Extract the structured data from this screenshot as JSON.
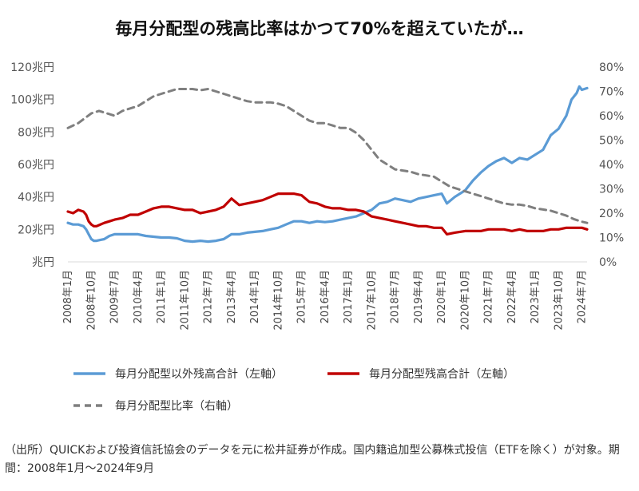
{
  "chart_data": {
    "type": "line",
    "title": "毎月分配型の残高比率はかつて70%を超えていたが…",
    "source": "（出所）QUICKおよび投資信託協会のデータを元に松井証券が作成。国内籍追加型公募株式投信（ETFを除く）が対象。期間：2008年1月～2024年9月",
    "x_tick_labels": [
      "2008年1月",
      "2008年10月",
      "2009年7月",
      "2010年4月",
      "2011年1月",
      "2011年10月",
      "2012年7月",
      "2013年4月",
      "2014年1月",
      "2014年10月",
      "2015年7月",
      "2016年4月",
      "2017年1月",
      "2017年10月",
      "2018年7月",
      "2019年4月",
      "2020年1月",
      "2020年10月",
      "2021年7月",
      "2022年4月",
      "2023年1月",
      "2023年10月",
      "2024年7月"
    ],
    "y_left": {
      "ticks": [
        "兆円",
        "20兆円",
        "40兆円",
        "60兆円",
        "80兆円",
        "100兆円",
        "120兆円"
      ],
      "ylim": [
        0,
        120
      ],
      "unit": "兆円"
    },
    "y_right": {
      "ticks": [
        "0%",
        "10%",
        "20%",
        "30%",
        "40%",
        "50%",
        "60%",
        "70%",
        "80%"
      ],
      "ylim": [
        0,
        80
      ],
      "unit": "%"
    },
    "grid": false,
    "legend_position": "bottom",
    "series": [
      {
        "name": "毎月分配型以外残高合計（左軸）",
        "axis": "left",
        "color": "#5b9bd5",
        "style": "solid",
        "points": [
          [
            "2008-01",
            24
          ],
          [
            "2008-03",
            23
          ],
          [
            "2008-05",
            23
          ],
          [
            "2008-07",
            22
          ],
          [
            "2008-08",
            20
          ],
          [
            "2008-09",
            17
          ],
          [
            "2008-10",
            14
          ],
          [
            "2008-11",
            13
          ],
          [
            "2008-12",
            13
          ],
          [
            "2009-03",
            14
          ],
          [
            "2009-05",
            16
          ],
          [
            "2009-07",
            17
          ],
          [
            "2009-10",
            17
          ],
          [
            "2010-01",
            17
          ],
          [
            "2010-04",
            17
          ],
          [
            "2010-07",
            16
          ],
          [
            "2010-10",
            15.5
          ],
          [
            "2011-01",
            15
          ],
          [
            "2011-04",
            15
          ],
          [
            "2011-07",
            14.5
          ],
          [
            "2011-10",
            13
          ],
          [
            "2012-01",
            12.5
          ],
          [
            "2012-04",
            13
          ],
          [
            "2012-07",
            12.5
          ],
          [
            "2012-10",
            13
          ],
          [
            "2013-01",
            14
          ],
          [
            "2013-04",
            17
          ],
          [
            "2013-07",
            17
          ],
          [
            "2013-10",
            18
          ],
          [
            "2014-01",
            18.5
          ],
          [
            "2014-04",
            19
          ],
          [
            "2014-07",
            20
          ],
          [
            "2014-10",
            21
          ],
          [
            "2015-01",
            23
          ],
          [
            "2015-04",
            25
          ],
          [
            "2015-07",
            25
          ],
          [
            "2015-10",
            24
          ],
          [
            "2016-01",
            25
          ],
          [
            "2016-04",
            24.5
          ],
          [
            "2016-07",
            25
          ],
          [
            "2016-10",
            26
          ],
          [
            "2017-01",
            27
          ],
          [
            "2017-04",
            28
          ],
          [
            "2017-07",
            30
          ],
          [
            "2017-10",
            32
          ],
          [
            "2018-01",
            36
          ],
          [
            "2018-04",
            37
          ],
          [
            "2018-07",
            39
          ],
          [
            "2018-10",
            38
          ],
          [
            "2019-01",
            37
          ],
          [
            "2019-04",
            39
          ],
          [
            "2019-07",
            40
          ],
          [
            "2019-10",
            41
          ],
          [
            "2020-01",
            42
          ],
          [
            "2020-03",
            36
          ],
          [
            "2020-06",
            40
          ],
          [
            "2020-10",
            44
          ],
          [
            "2021-01",
            50
          ],
          [
            "2021-04",
            55
          ],
          [
            "2021-07",
            59
          ],
          [
            "2021-10",
            62
          ],
          [
            "2022-01",
            64
          ],
          [
            "2022-04",
            61
          ],
          [
            "2022-07",
            64
          ],
          [
            "2022-10",
            63
          ],
          [
            "2023-01",
            66
          ],
          [
            "2023-04",
            69
          ],
          [
            "2023-07",
            78
          ],
          [
            "2023-10",
            82
          ],
          [
            "2024-01",
            90
          ],
          [
            "2024-03",
            100
          ],
          [
            "2024-05",
            104
          ],
          [
            "2024-06",
            108
          ],
          [
            "2024-07",
            106
          ],
          [
            "2024-09",
            107
          ]
        ]
      },
      {
        "name": "毎月分配型残高合計（左軸）",
        "axis": "left",
        "color": "#c00000",
        "style": "solid",
        "points": [
          [
            "2008-01",
            31
          ],
          [
            "2008-03",
            30
          ],
          [
            "2008-05",
            32
          ],
          [
            "2008-07",
            31
          ],
          [
            "2008-08",
            29
          ],
          [
            "2008-09",
            25
          ],
          [
            "2008-10",
            23
          ],
          [
            "2008-11",
            22
          ],
          [
            "2008-12",
            22
          ],
          [
            "2009-03",
            24
          ],
          [
            "2009-05",
            25
          ],
          [
            "2009-07",
            26
          ],
          [
            "2009-10",
            27
          ],
          [
            "2010-01",
            29
          ],
          [
            "2010-04",
            29
          ],
          [
            "2010-07",
            31
          ],
          [
            "2010-10",
            33
          ],
          [
            "2011-01",
            34
          ],
          [
            "2011-04",
            34
          ],
          [
            "2011-07",
            33
          ],
          [
            "2011-10",
            32
          ],
          [
            "2012-01",
            32
          ],
          [
            "2012-04",
            30
          ],
          [
            "2012-07",
            31
          ],
          [
            "2012-10",
            32
          ],
          [
            "2013-01",
            34
          ],
          [
            "2013-04",
            39
          ],
          [
            "2013-07",
            35
          ],
          [
            "2013-10",
            36
          ],
          [
            "2014-01",
            37
          ],
          [
            "2014-04",
            38
          ],
          [
            "2014-07",
            40
          ],
          [
            "2014-10",
            42
          ],
          [
            "2015-01",
            42
          ],
          [
            "2015-04",
            42
          ],
          [
            "2015-07",
            41
          ],
          [
            "2015-10",
            37
          ],
          [
            "2016-01",
            36
          ],
          [
            "2016-04",
            34
          ],
          [
            "2016-07",
            33
          ],
          [
            "2016-10",
            33
          ],
          [
            "2017-01",
            32
          ],
          [
            "2017-04",
            32
          ],
          [
            "2017-07",
            31
          ],
          [
            "2017-10",
            28
          ],
          [
            "2018-01",
            27
          ],
          [
            "2018-04",
            26
          ],
          [
            "2018-07",
            25
          ],
          [
            "2018-10",
            24
          ],
          [
            "2019-01",
            23
          ],
          [
            "2019-04",
            22
          ],
          [
            "2019-07",
            22
          ],
          [
            "2019-10",
            21
          ],
          [
            "2020-01",
            21
          ],
          [
            "2020-03",
            17
          ],
          [
            "2020-06",
            18
          ],
          [
            "2020-10",
            19
          ],
          [
            "2021-01",
            19
          ],
          [
            "2021-04",
            19
          ],
          [
            "2021-07",
            20
          ],
          [
            "2021-10",
            20
          ],
          [
            "2022-01",
            20
          ],
          [
            "2022-04",
            19
          ],
          [
            "2022-07",
            20
          ],
          [
            "2022-10",
            19
          ],
          [
            "2023-01",
            19
          ],
          [
            "2023-04",
            19
          ],
          [
            "2023-07",
            20
          ],
          [
            "2023-10",
            20
          ],
          [
            "2024-01",
            21
          ],
          [
            "2024-04",
            21
          ],
          [
            "2024-07",
            21
          ],
          [
            "2024-09",
            20
          ]
        ]
      },
      {
        "name": "毎月分配型比率（右軸）",
        "axis": "right",
        "color": "#7f7f7f",
        "style": "dashed",
        "points": [
          [
            "2008-01",
            55
          ],
          [
            "2008-05",
            57
          ],
          [
            "2008-10",
            61
          ],
          [
            "2009-01",
            62
          ],
          [
            "2009-04",
            61
          ],
          [
            "2009-07",
            60
          ],
          [
            "2009-10",
            62
          ],
          [
            "2010-01",
            63
          ],
          [
            "2010-04",
            64
          ],
          [
            "2010-07",
            66
          ],
          [
            "2010-10",
            68
          ],
          [
            "2011-01",
            69
          ],
          [
            "2011-04",
            70
          ],
          [
            "2011-07",
            71
          ],
          [
            "2011-10",
            71
          ],
          [
            "2012-01",
            71
          ],
          [
            "2012-04",
            70.5
          ],
          [
            "2012-07",
            71
          ],
          [
            "2012-10",
            70
          ],
          [
            "2013-01",
            69
          ],
          [
            "2013-04",
            68
          ],
          [
            "2013-07",
            67
          ],
          [
            "2013-10",
            66
          ],
          [
            "2014-01",
            65.5
          ],
          [
            "2014-04",
            65.5
          ],
          [
            "2014-07",
            65.5
          ],
          [
            "2014-10",
            65
          ],
          [
            "2015-01",
            64
          ],
          [
            "2015-04",
            62
          ],
          [
            "2015-07",
            60
          ],
          [
            "2015-10",
            58
          ],
          [
            "2016-01",
            57
          ],
          [
            "2016-04",
            57
          ],
          [
            "2016-07",
            56
          ],
          [
            "2016-10",
            55
          ],
          [
            "2017-01",
            55
          ],
          [
            "2017-04",
            53
          ],
          [
            "2017-07",
            50
          ],
          [
            "2017-10",
            46
          ],
          [
            "2018-01",
            42
          ],
          [
            "2018-04",
            40
          ],
          [
            "2018-07",
            38
          ],
          [
            "2018-10",
            37.5
          ],
          [
            "2019-01",
            37
          ],
          [
            "2019-04",
            36
          ],
          [
            "2019-07",
            35.5
          ],
          [
            "2019-10",
            35
          ],
          [
            "2020-01",
            33
          ],
          [
            "2020-04",
            31
          ],
          [
            "2020-07",
            30
          ],
          [
            "2020-10",
            29
          ],
          [
            "2021-01",
            28
          ],
          [
            "2021-04",
            27
          ],
          [
            "2021-07",
            26
          ],
          [
            "2021-10",
            25
          ],
          [
            "2022-01",
            24
          ],
          [
            "2022-04",
            23.5
          ],
          [
            "2022-07",
            23.5
          ],
          [
            "2022-10",
            23
          ],
          [
            "2023-01",
            22
          ],
          [
            "2023-04",
            21.5
          ],
          [
            "2023-07",
            21
          ],
          [
            "2023-10",
            20
          ],
          [
            "2024-01",
            19
          ],
          [
            "2024-04",
            17.5
          ],
          [
            "2024-07",
            16.5
          ],
          [
            "2024-09",
            16
          ]
        ]
      }
    ]
  }
}
